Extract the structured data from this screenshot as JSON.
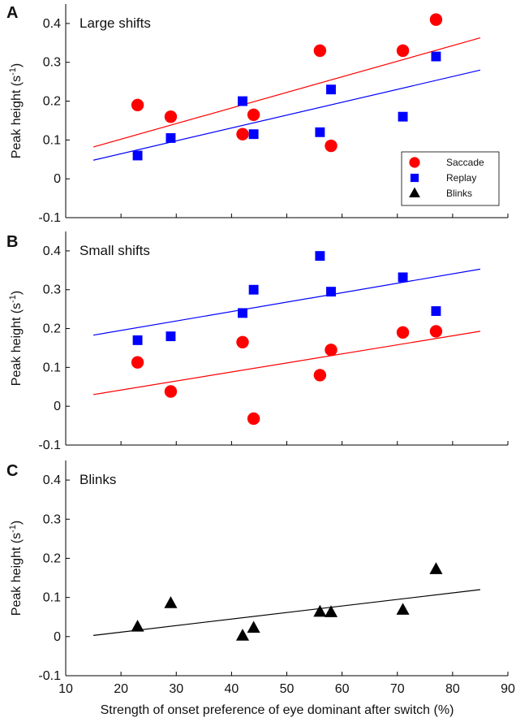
{
  "figure": {
    "shared_xlabel": "Strength of onset preference of eye dominant after switch (%)"
  },
  "colors": {
    "saccade": "#ff0000",
    "replay": "#0000ff",
    "blinks": "#000000"
  },
  "chart_data": [
    {
      "type": "scatter",
      "panel_letter": "A",
      "title": "Large shifts",
      "xlabel": "",
      "ylabel": "Peak height (s",
      "ylabel_sup": "-1",
      "ylabel_end": ")",
      "xlim": [
        10,
        90
      ],
      "ylim": [
        -0.1,
        0.45
      ],
      "xticks": [
        10,
        20,
        30,
        40,
        50,
        60,
        70,
        80,
        90
      ],
      "xtick_labels_shown": false,
      "yticks": [
        -0.1,
        0,
        0.1,
        0.2,
        0.3,
        0.4
      ],
      "ytick_labels": [
        "-0.1",
        "0",
        "0.1",
        "0.2",
        "0.3",
        "0.4"
      ],
      "grid": false,
      "legend": {
        "placement": "bottom-right",
        "entries": [
          {
            "name": "Saccade",
            "marker": "circle",
            "color": "#ff0000"
          },
          {
            "name": "Replay",
            "marker": "square",
            "color": "#0000ff"
          },
          {
            "name": "Blinks",
            "marker": "triangle",
            "color": "#000000"
          }
        ]
      },
      "series": [
        {
          "name": "Saccade",
          "marker": "circle",
          "color": "#ff0000",
          "x": [
            23,
            29,
            42,
            44,
            56,
            58,
            71,
            77
          ],
          "y": [
            0.19,
            0.16,
            0.115,
            0.165,
            0.33,
            0.085,
            0.33,
            0.41
          ],
          "fit": {
            "x": [
              15,
              85
            ],
            "y": [
              0.082,
              0.363
            ]
          }
        },
        {
          "name": "Replay",
          "marker": "square",
          "color": "#0000ff",
          "x": [
            23,
            29,
            42,
            44,
            56,
            58,
            71,
            77
          ],
          "y": [
            0.06,
            0.105,
            0.2,
            0.115,
            0.12,
            0.23,
            0.16,
            0.315
          ],
          "fit": {
            "x": [
              15,
              85
            ],
            "y": [
              0.048,
              0.28
            ]
          }
        }
      ]
    },
    {
      "type": "scatter",
      "panel_letter": "B",
      "title": "Small shifts",
      "xlabel": "",
      "ylabel": "Peak height (s",
      "ylabel_sup": "-1",
      "ylabel_end": ")",
      "xlim": [
        10,
        90
      ],
      "ylim": [
        -0.1,
        0.45
      ],
      "xticks": [
        10,
        20,
        30,
        40,
        50,
        60,
        70,
        80,
        90
      ],
      "xtick_labels_shown": false,
      "yticks": [
        -0.1,
        0,
        0.1,
        0.2,
        0.3,
        0.4
      ],
      "ytick_labels": [
        "-0.1",
        "0",
        "0.1",
        "0.2",
        "0.3",
        "0.4"
      ],
      "grid": false,
      "series": [
        {
          "name": "Saccade",
          "marker": "circle",
          "color": "#ff0000",
          "x": [
            23,
            29,
            42,
            44,
            56,
            58,
            71,
            77
          ],
          "y": [
            0.113,
            0.038,
            0.165,
            -0.032,
            0.08,
            0.145,
            0.19,
            0.193
          ],
          "fit": {
            "x": [
              15,
              85
            ],
            "y": [
              0.03,
              0.193
            ]
          }
        },
        {
          "name": "Replay",
          "marker": "square",
          "color": "#0000ff",
          "x": [
            23,
            29,
            42,
            44,
            56,
            58,
            71,
            77
          ],
          "y": [
            0.17,
            0.18,
            0.24,
            0.3,
            0.387,
            0.295,
            0.332,
            0.245
          ],
          "fit": {
            "x": [
              15,
              85
            ],
            "y": [
              0.183,
              0.353
            ]
          }
        }
      ]
    },
    {
      "type": "scatter",
      "panel_letter": "C",
      "title": "Blinks",
      "xlabel": "Strength of onset preference of eye dominant after switch (%)",
      "ylabel": "Peak height (s",
      "ylabel_sup": "-1",
      "ylabel_end": ")",
      "xlim": [
        10,
        90
      ],
      "ylim": [
        -0.1,
        0.45
      ],
      "xticks": [
        10,
        20,
        30,
        40,
        50,
        60,
        70,
        80,
        90
      ],
      "xtick_labels": [
        "10",
        "20",
        "30",
        "40",
        "50",
        "60",
        "70",
        "80",
        "90"
      ],
      "xtick_labels_shown": true,
      "yticks": [
        -0.1,
        0,
        0.1,
        0.2,
        0.3,
        0.4
      ],
      "ytick_labels": [
        "-0.1",
        "0",
        "0.1",
        "0.2",
        "0.3",
        "0.4"
      ],
      "grid": false,
      "series": [
        {
          "name": "Blinks",
          "marker": "triangle",
          "color": "#000000",
          "x": [
            23,
            29,
            42,
            44,
            56,
            58,
            71,
            77
          ],
          "y": [
            0.025,
            0.085,
            0.002,
            0.022,
            0.063,
            0.062,
            0.068,
            0.172
          ],
          "fit": {
            "x": [
              15,
              85
            ],
            "y": [
              0.003,
              0.12
            ]
          }
        }
      ]
    }
  ]
}
